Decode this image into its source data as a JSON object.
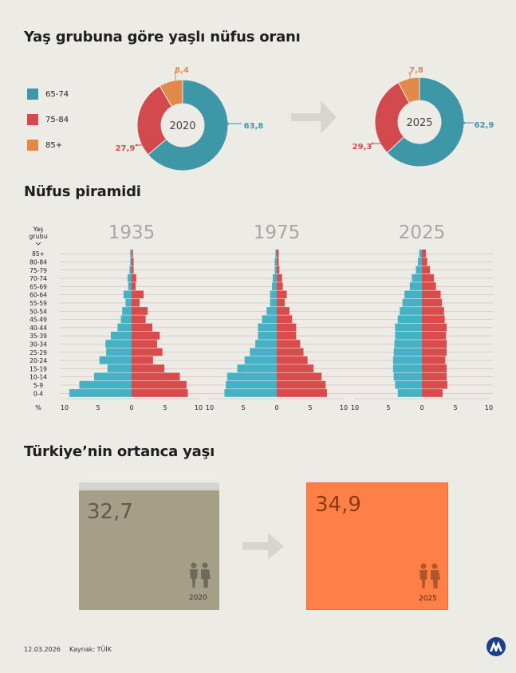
{
  "colors": {
    "age_65_74": "#3e97a6",
    "age_75_84": "#d24a4e",
    "age_85_plus": "#e2894a",
    "male": "#45b1c4",
    "female": "#dc4b4b",
    "median_2020": "#a59f87",
    "median_2025": "#ff8047"
  },
  "titles": {
    "donut": "Yaş grubuna göre yaşlı nüfus oranı",
    "pyramid": "Nüfus piramidi",
    "median": "Türkiye’nin ortanca yaşı"
  },
  "legend": [
    {
      "label": "65-74",
      "color": "#3e97a6"
    },
    {
      "label": "75-84",
      "color": "#d24a4e"
    },
    {
      "label": "85+",
      "color": "#e2894a"
    }
  ],
  "pyramid_axis_label": "Yaş grubu",
  "pyramid_unit_label": "%",
  "median": {
    "items": [
      {
        "value": "32,7",
        "year": "2020",
        "color": "#a59f87"
      },
      {
        "value": "34,9",
        "year": "2025",
        "color": "#ff8047"
      }
    ]
  },
  "footer": {
    "date": "12.03.2026",
    "source": "Kaynak: TÜİK",
    "logo": "AA"
  },
  "chart_data": [
    {
      "type": "pie",
      "center_label": "2020",
      "labels": [
        "65-74",
        "75-84",
        "85+"
      ],
      "values": [
        63.8,
        27.9,
        8.4
      ],
      "value_labels": [
        "63,8",
        "27,9",
        "8,4"
      ]
    },
    {
      "type": "pie",
      "center_label": "2025",
      "labels": [
        "65-74",
        "75-84",
        "85+"
      ],
      "values": [
        62.9,
        29.3,
        7.8
      ],
      "value_labels": [
        "62,9",
        "29,3",
        "7,8"
      ]
    },
    {
      "type": "bar",
      "orientation": "horizontal",
      "categories": [
        "85+",
        "80-84",
        "75-79",
        "70-74",
        "65-69",
        "60-64",
        "55-59",
        "50-54",
        "45-49",
        "40-44",
        "35-39",
        "30-34",
        "25-29",
        "20-24",
        "15-19",
        "10-14",
        "5-9",
        "0-4"
      ],
      "xlim": [
        -10,
        10
      ],
      "xticks": [
        -10,
        -5,
        0,
        5,
        10
      ],
      "xtick_labels": [
        "10",
        "5",
        "0",
        "5",
        "10"
      ],
      "panels": [
        {
          "title": "1935",
          "left_values": [
            0.2,
            0.2,
            0.3,
            0.6,
            0.5,
            1.2,
            0.9,
            1.4,
            1.6,
            2.1,
            3.1,
            3.9,
            3.8,
            4.8,
            3.6,
            5.6,
            7.8,
            9.3
          ],
          "right_values": [
            0.2,
            0.3,
            0.3,
            0.7,
            0.6,
            1.8,
            1.2,
            2.4,
            2.1,
            3.1,
            4.2,
            3.8,
            4.6,
            3.2,
            4.9,
            7.2,
            8.2,
            8.4
          ]
        },
        {
          "title": "1975",
          "left_values": [
            0.2,
            0.3,
            0.3,
            0.6,
            0.7,
            1.0,
            1.0,
            1.5,
            2.2,
            2.8,
            2.8,
            3.2,
            4.0,
            4.8,
            5.9,
            7.4,
            7.6,
            7.8
          ],
          "right_values": [
            0.3,
            0.3,
            0.4,
            0.8,
            0.9,
            1.5,
            1.2,
            1.9,
            2.3,
            2.9,
            2.9,
            3.5,
            4.0,
            4.6,
            5.5,
            6.7,
            7.3,
            7.5
          ]
        },
        {
          "title": "2025",
          "left_values": [
            0.4,
            0.6,
            0.9,
            1.5,
            1.8,
            2.6,
            2.9,
            3.3,
            3.6,
            4.0,
            4.0,
            4.1,
            4.2,
            4.3,
            4.3,
            4.2,
            4.0,
            3.6
          ],
          "right_values": [
            0.6,
            0.8,
            1.2,
            1.8,
            2.1,
            2.8,
            3.0,
            3.3,
            3.4,
            3.7,
            3.6,
            3.7,
            3.7,
            3.5,
            3.7,
            3.7,
            3.8,
            3.1
          ]
        }
      ]
    }
  ]
}
